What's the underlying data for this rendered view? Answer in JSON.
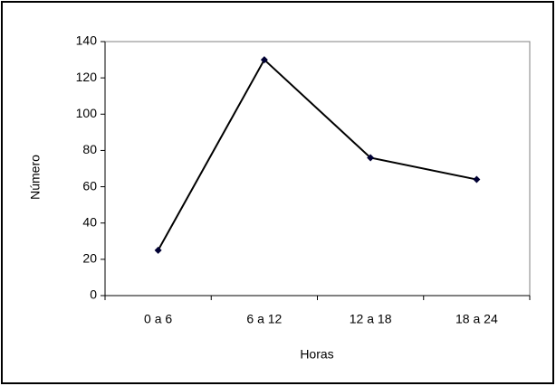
{
  "chart_data": {
    "type": "line",
    "x_label": "Horas",
    "y_label": "Número",
    "categories": [
      "0 a 6",
      "6 a 12",
      "12 a 18",
      "18 a 24"
    ],
    "values": [
      25,
      130,
      76,
      64
    ],
    "color": "#000000",
    "marker_color": "#000033",
    "ylim": [
      0,
      140
    ],
    "yticks": [
      0,
      20,
      40,
      60,
      80,
      100,
      120,
      140
    ]
  }
}
